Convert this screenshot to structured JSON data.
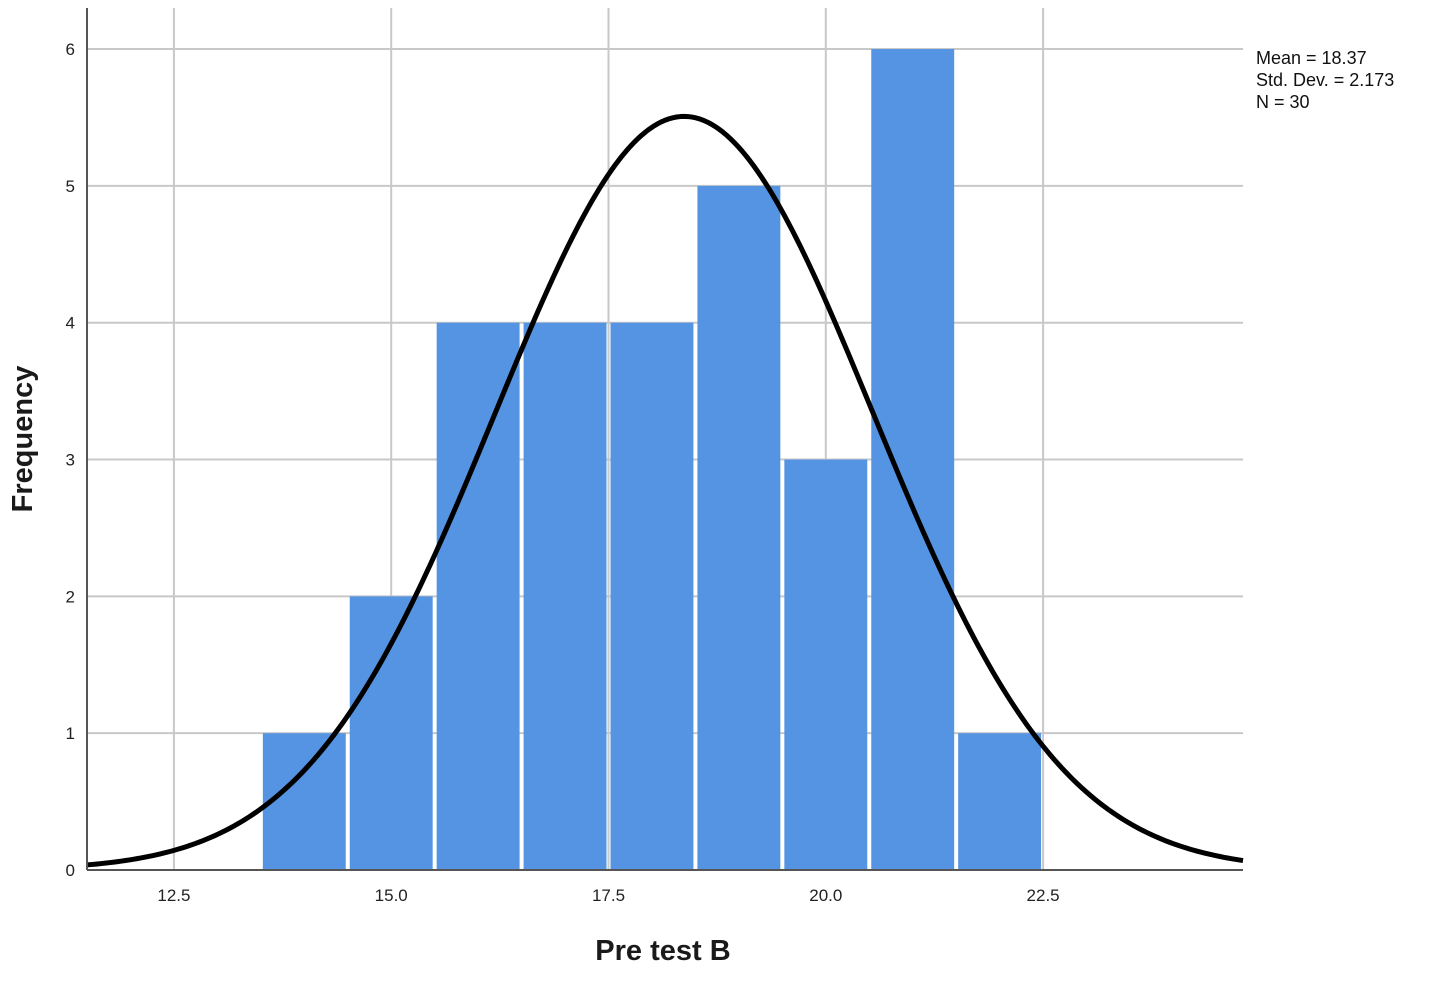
{
  "chart_data": {
    "type": "bar",
    "xlabel": "Pre test B",
    "ylabel": "Frequency",
    "xlim": [
      11.5,
      24.8
    ],
    "ylim": [
      0,
      6.3
    ],
    "x_ticks": [
      "12.5",
      "15.0",
      "17.5",
      "20.0",
      "22.5"
    ],
    "x_tick_values": [
      12.5,
      15.0,
      17.5,
      20.0,
      22.5
    ],
    "y_ticks": [
      "0",
      "1",
      "2",
      "3",
      "4",
      "5",
      "6"
    ],
    "y_tick_values": [
      0,
      1,
      2,
      3,
      4,
      5,
      6
    ],
    "grid": true,
    "bin_width": 1,
    "bins": [
      {
        "start": 13.5,
        "end": 14.5,
        "value": 1
      },
      {
        "start": 14.5,
        "end": 15.5,
        "value": 2
      },
      {
        "start": 15.5,
        "end": 16.5,
        "value": 4
      },
      {
        "start": 16.5,
        "end": 17.5,
        "value": 4
      },
      {
        "start": 17.5,
        "end": 18.5,
        "value": 4
      },
      {
        "start": 18.5,
        "end": 19.5,
        "value": 5
      },
      {
        "start": 19.5,
        "end": 20.5,
        "value": 3
      },
      {
        "start": 20.5,
        "end": 21.5,
        "value": 6
      },
      {
        "start": 21.5,
        "end": 22.5,
        "value": 1
      }
    ],
    "normal_curve": {
      "mean": 18.37,
      "sd": 2.173,
      "n": 30
    },
    "stats_lines": [
      "Mean = 18.37",
      "Std. Dev. = 2.173",
      "N = 30"
    ],
    "colors": {
      "bar": "#5594e2",
      "curve": "#000000",
      "grid": "#c8c8c8",
      "axis": "#555555"
    }
  }
}
